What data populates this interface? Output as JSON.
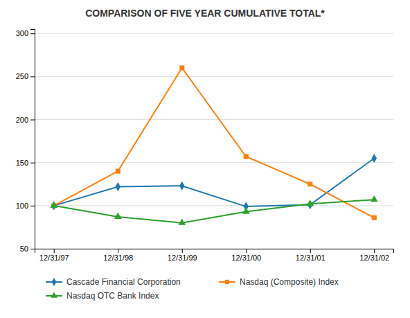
{
  "chart_data": {
    "type": "line",
    "title": "COMPARISON OF FIVE YEAR CUMULATIVE TOTAL*",
    "categories": [
      "12/31/97",
      "12/31/98",
      "12/31/99",
      "12/31/00",
      "12/31/01",
      "12/31/02"
    ],
    "series": [
      {
        "name": "Cascade Financial Corporation",
        "values": [
          100,
          122,
          123,
          99,
          101,
          155
        ],
        "marker": "diamond"
      },
      {
        "name": "Nasdaq (Composite) Index",
        "values": [
          100,
          140,
          260,
          157,
          125,
          86
        ],
        "marker": "square"
      },
      {
        "name": "Nasdaq OTC Bank Index",
        "values": [
          100,
          87,
          80,
          93,
          102,
          107
        ],
        "marker": "triangle"
      }
    ],
    "ylim": [
      50,
      305
    ],
    "yticks": [
      50,
      100,
      150,
      200,
      250,
      300
    ],
    "grid": true,
    "legend": "bottom"
  }
}
